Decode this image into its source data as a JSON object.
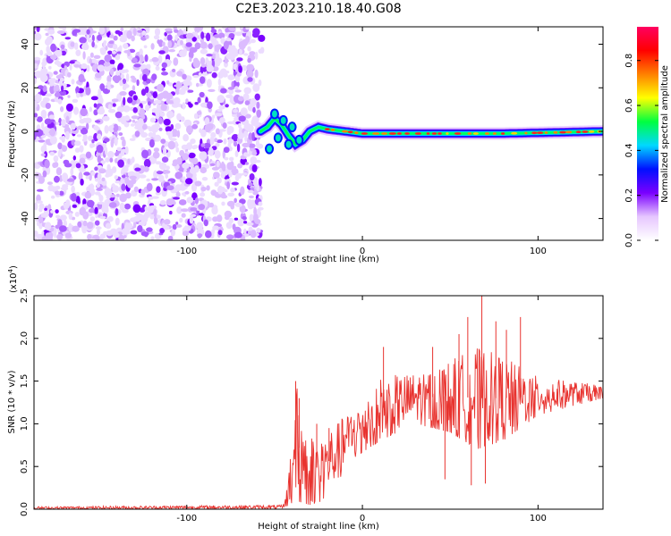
{
  "title": "C2E3.2023.210.18.40.G08",
  "chart_data": [
    {
      "type": "heatmap",
      "xlabel": "Height of straight line (km)",
      "ylabel": "Frequency (Hz)",
      "xlim": [
        -187,
        137
      ],
      "ylim": [
        -50,
        48
      ],
      "xticks": [
        {
          "v": -100,
          "label": "-100"
        },
        {
          "v": 0,
          "label": "0"
        },
        {
          "v": 100,
          "label": "100"
        }
      ],
      "yticks": [
        {
          "v": -40,
          "label": "-40"
        },
        {
          "v": -20,
          "label": "-20"
        },
        {
          "v": 0,
          "label": "0"
        },
        {
          "v": 20,
          "label": "20"
        },
        {
          "v": 40,
          "label": "40"
        }
      ],
      "noise_region": [
        -187,
        -58
      ],
      "signal_track": [
        {
          "x": -58,
          "f": 0
        },
        {
          "x": -54,
          "f": 2
        },
        {
          "x": -50,
          "f": 6
        },
        {
          "x": -46,
          "f": 3
        },
        {
          "x": -42,
          "f": -2
        },
        {
          "x": -38,
          "f": -6
        },
        {
          "x": -34,
          "f": -4
        },
        {
          "x": -30,
          "f": 0
        },
        {
          "x": -25,
          "f": 2
        },
        {
          "x": -20,
          "f": 1
        },
        {
          "x": -10,
          "f": 0
        },
        {
          "x": 0,
          "f": -1
        },
        {
          "x": 20,
          "f": -1
        },
        {
          "x": 50,
          "f": -1
        },
        {
          "x": 80,
          "f": -1
        },
        {
          "x": 110,
          "f": -0.5
        },
        {
          "x": 137,
          "f": 0
        }
      ],
      "colorbar": {
        "label": "Normalized spectral amplitude",
        "range": [
          0,
          0.95
        ],
        "ticks": [
          {
            "v": 0.0,
            "label": "0.0"
          },
          {
            "v": 0.2,
            "label": "0.2"
          },
          {
            "v": 0.4,
            "label": "0.4"
          },
          {
            "v": 0.6,
            "label": "0.6"
          },
          {
            "v": 0.8,
            "label": "0.8"
          }
        ],
        "colors": [
          "#ffffff",
          "#e6c6ff",
          "#7a00ff",
          "#0010ff",
          "#00d8ff",
          "#00ff40",
          "#ffff00",
          "#ff8000",
          "#ff0000",
          "#ff0060"
        ]
      }
    },
    {
      "type": "line",
      "xlabel": "Height of straight line (km)",
      "ylabel": "SNR (10 * v/v)",
      "exponent_label": "(x10",
      "exponent_sup": "4",
      "exponent_close": ")",
      "xlim": [
        -187,
        137
      ],
      "ylim": [
        0,
        2.5
      ],
      "xticks": [
        {
          "v": -100,
          "label": "-100"
        },
        {
          "v": 0,
          "label": "0"
        },
        {
          "v": 100,
          "label": "100"
        }
      ],
      "yticks": [
        {
          "v": 0.0,
          "label": "0.0"
        },
        {
          "v": 0.5,
          "label": "0.5"
        },
        {
          "v": 1.0,
          "label": "1.0"
        },
        {
          "v": 1.5,
          "label": "1.5"
        },
        {
          "v": 2.0,
          "label": "2.0"
        },
        {
          "v": 2.5,
          "label": "2.5"
        }
      ],
      "color": "#e8332f",
      "envelope": [
        {
          "x": -187,
          "lo": 0.0,
          "hi": 0.03
        },
        {
          "x": -45,
          "lo": 0.0,
          "hi": 0.05
        },
        {
          "x": -42,
          "lo": 0.05,
          "hi": 0.5
        },
        {
          "x": -38,
          "lo": 0.1,
          "hi": 1.5
        },
        {
          "x": -30,
          "lo": 0.05,
          "hi": 0.9
        },
        {
          "x": -22,
          "lo": 0.1,
          "hi": 0.9
        },
        {
          "x": -15,
          "lo": 0.3,
          "hi": 1.0
        },
        {
          "x": -5,
          "lo": 0.6,
          "hi": 1.2
        },
        {
          "x": 10,
          "lo": 0.8,
          "hi": 1.55
        },
        {
          "x": 30,
          "lo": 1.0,
          "hi": 1.6
        },
        {
          "x": 50,
          "lo": 0.9,
          "hi": 1.75
        },
        {
          "x": 65,
          "lo": 0.7,
          "hi": 1.9
        },
        {
          "x": 80,
          "lo": 0.8,
          "hi": 1.8
        },
        {
          "x": 100,
          "lo": 1.1,
          "hi": 1.55
        },
        {
          "x": 137,
          "lo": 1.3,
          "hi": 1.45
        }
      ],
      "spikes": [
        {
          "x": -38,
          "y": 1.5
        },
        {
          "x": -36,
          "y": 1.3
        },
        {
          "x": -26,
          "y": 1.0
        },
        {
          "x": -19,
          "y": 0.95
        },
        {
          "x": 12,
          "y": 1.9
        },
        {
          "x": 40,
          "y": 1.9
        },
        {
          "x": 55,
          "y": 2.05
        },
        {
          "x": 60,
          "y": 2.25
        },
        {
          "x": 68,
          "y": 2.5
        },
        {
          "x": 70,
          "y": 0.3
        },
        {
          "x": 76,
          "y": 2.2
        },
        {
          "x": 82,
          "y": 2.1
        },
        {
          "x": 90,
          "y": 2.25
        },
        {
          "x": 62,
          "y": 0.28
        },
        {
          "x": 47,
          "y": 0.35
        }
      ]
    }
  ]
}
